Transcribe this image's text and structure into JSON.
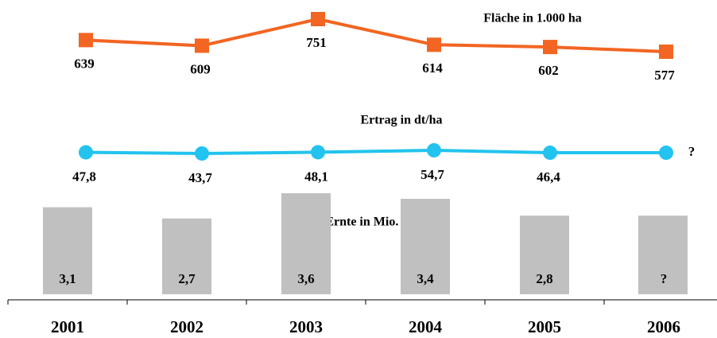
{
  "chart_data": [
    {
      "type": "line",
      "title": "Fläche in 1.000 ha",
      "color": "#f26522",
      "marker": "square",
      "values": [
        639,
        609,
        751,
        614,
        602,
        577
      ]
    },
    {
      "type": "line",
      "title": "Ertrag in dt/ha",
      "color": "#22c3ee",
      "marker": "circle",
      "values": [
        47.8,
        43.7,
        48.1,
        54.7,
        46.4,
        null
      ],
      "value_labels": [
        "47,8",
        "43,7",
        "48,1",
        "54,7",
        "46,4",
        "?"
      ]
    },
    {
      "type": "bar",
      "title": "Ernte in Mio. t",
      "color": "#c0c0c0",
      "categories": [
        "2001",
        "2002",
        "2003",
        "2004",
        "2005",
        "2006"
      ],
      "values": [
        3.1,
        2.7,
        3.6,
        3.4,
        2.8,
        null
      ],
      "value_labels": [
        "3,1",
        "2,7",
        "3,6",
        "3,4",
        "2,8",
        "?"
      ]
    }
  ]
}
